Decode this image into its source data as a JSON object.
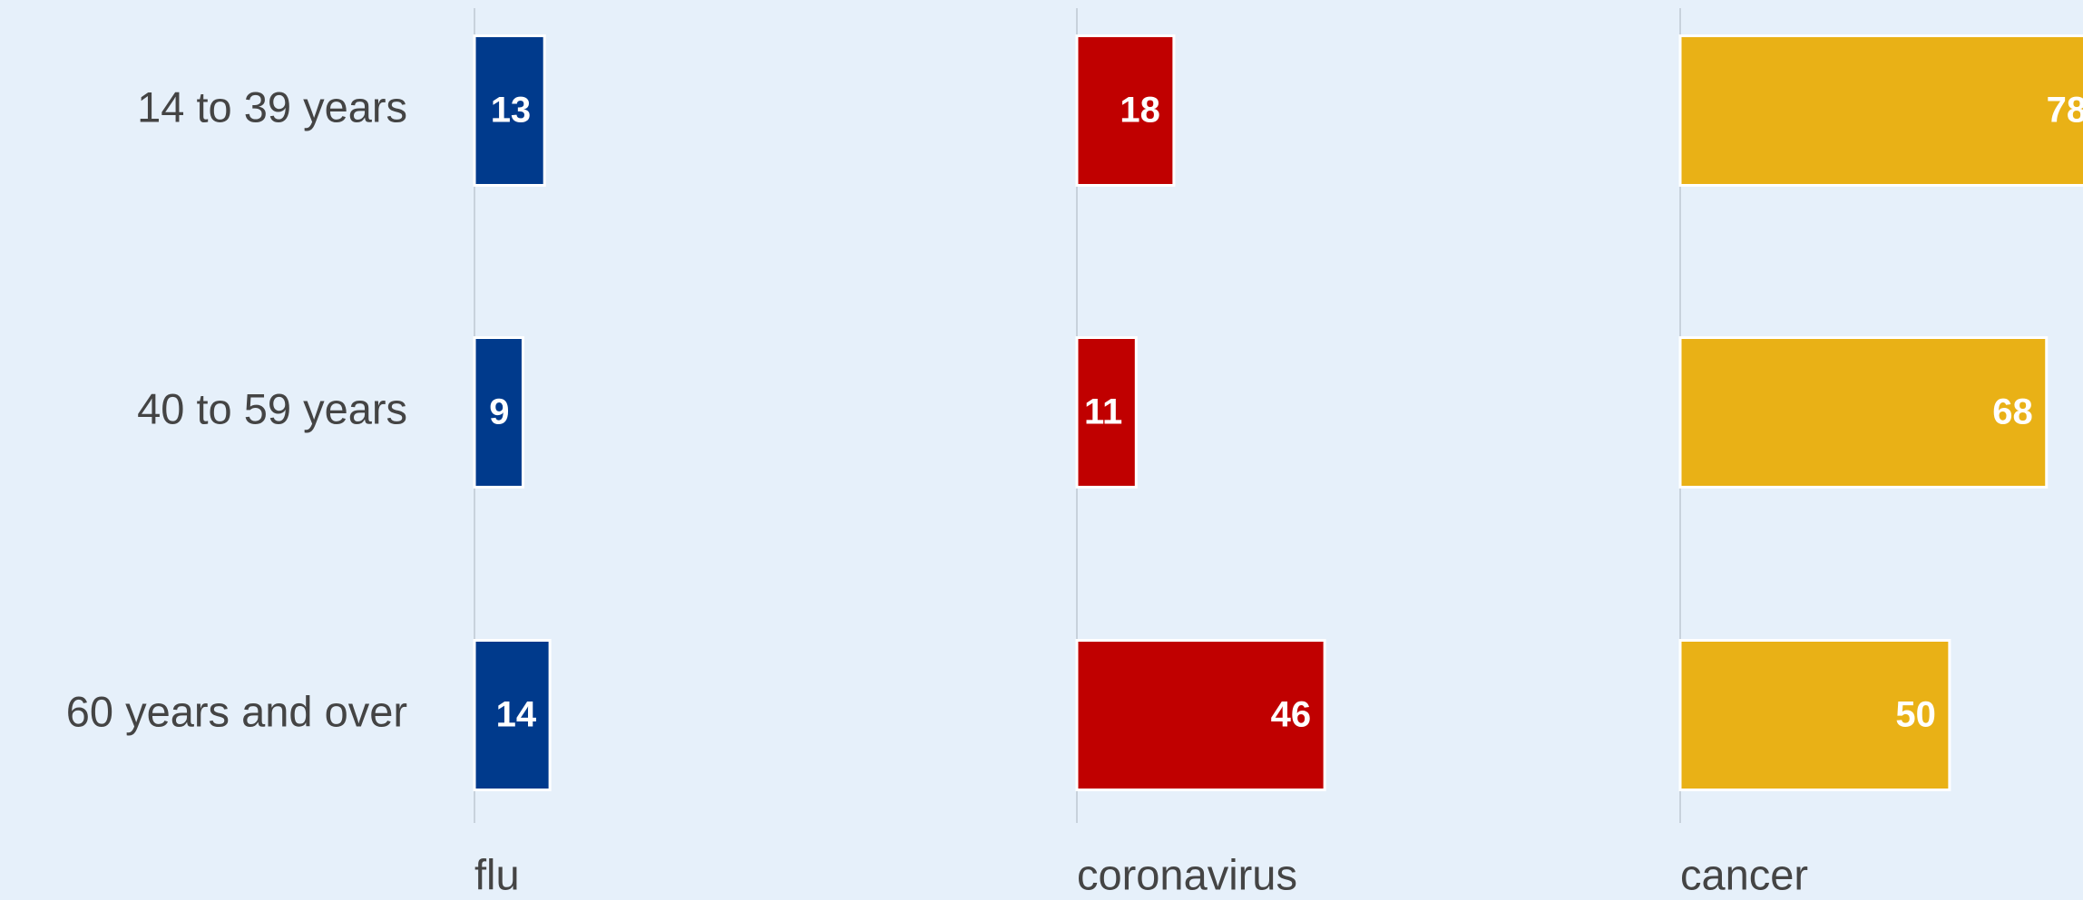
{
  "chart_data": {
    "type": "bar",
    "orientation": "horizontal",
    "categories": [
      "14 to 39 years",
      "40 to 59 years",
      "60 years and over"
    ],
    "series": [
      {
        "name": "flu",
        "color": "#003a8c",
        "values": [
          13,
          9,
          14
        ]
      },
      {
        "name": "coronavirus",
        "color": "#c00000",
        "values": [
          18,
          11,
          46
        ]
      },
      {
        "name": "cancer",
        "color": "#e9b116",
        "values": [
          78,
          68,
          50
        ]
      }
    ],
    "xlim": [
      0,
      112
    ]
  }
}
